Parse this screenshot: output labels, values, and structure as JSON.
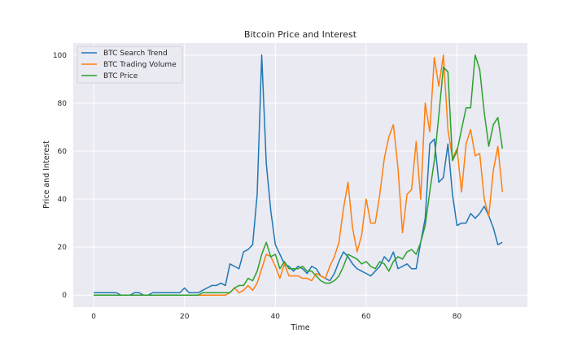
{
  "chart_data": {
    "type": "line",
    "title": "Bitcoin Price and Interest",
    "xlabel": "Time",
    "ylabel": "Price and Interest",
    "xlim": [
      -4.5,
      95.5
    ],
    "ylim": [
      -5,
      105
    ],
    "xticks": [
      0,
      20,
      40,
      60,
      80
    ],
    "yticks": [
      0,
      20,
      40,
      60,
      80,
      100
    ],
    "grid": true,
    "legend_position": "top-left",
    "series": [
      {
        "name": "BTC Search Trend",
        "color": "#1f77b4",
        "values": [
          1,
          1,
          1,
          1,
          1,
          1,
          0,
          0,
          0,
          1,
          1,
          0,
          0,
          1,
          1,
          1,
          1,
          1,
          1,
          1,
          3,
          1,
          1,
          1,
          2,
          3,
          4,
          4,
          5,
          4,
          13,
          12,
          11,
          18,
          19,
          21,
          42,
          100,
          55,
          35,
          21,
          17,
          13,
          12,
          10,
          12,
          11,
          9,
          12,
          11,
          8,
          7,
          6,
          9,
          14,
          18,
          16,
          13,
          11,
          10,
          9,
          8,
          10,
          12,
          16,
          14,
          18,
          11,
          12,
          13,
          11,
          11,
          22,
          32,
          63,
          65,
          47,
          49,
          63,
          42,
          29,
          30,
          30,
          34,
          32,
          34,
          37,
          33,
          28,
          21,
          22
        ]
      },
      {
        "name": "BTC Trading Volume",
        "color": "#ff7f0e",
        "values": [
          0,
          0,
          0,
          0,
          0,
          0,
          0,
          0,
          0,
          0,
          0,
          0,
          0,
          0,
          0,
          0,
          0,
          0,
          0,
          0,
          0,
          0,
          0,
          0,
          0,
          0,
          0,
          0,
          0,
          0,
          1,
          3,
          1,
          2,
          4,
          2,
          5,
          11,
          17,
          16,
          12,
          7,
          13,
          8,
          8,
          8,
          7,
          7,
          6,
          9,
          8,
          7,
          12,
          16,
          22,
          36,
          47,
          28,
          18,
          25,
          40,
          30,
          30,
          42,
          57,
          66,
          71,
          53,
          26,
          42,
          44,
          64,
          40,
          80,
          68,
          99,
          87,
          100,
          69,
          57,
          61,
          43,
          63,
          69,
          58,
          59,
          40,
          33,
          52,
          62,
          43
        ]
      },
      {
        "name": "BTC Price",
        "color": "#2ca02c",
        "values": [
          0,
          0,
          0,
          0,
          0,
          0,
          0,
          0,
          0,
          0,
          0,
          0,
          0,
          0,
          0,
          0,
          0,
          0,
          0,
          0,
          0,
          0,
          0,
          0,
          1,
          1,
          1,
          1,
          1,
          1,
          1,
          3,
          4,
          4,
          7,
          6,
          10,
          17,
          22,
          16,
          17,
          11,
          14,
          11,
          11,
          11,
          12,
          10,
          10,
          8,
          6,
          5,
          5,
          6,
          8,
          12,
          17,
          16,
          15,
          13,
          14,
          12,
          11,
          14,
          13,
          10,
          14,
          16,
          15,
          18,
          19,
          17,
          22,
          29,
          43,
          56,
          75,
          95,
          93,
          56,
          60,
          69,
          78,
          78,
          100,
          94,
          76,
          62,
          71,
          74,
          61
        ]
      }
    ]
  }
}
